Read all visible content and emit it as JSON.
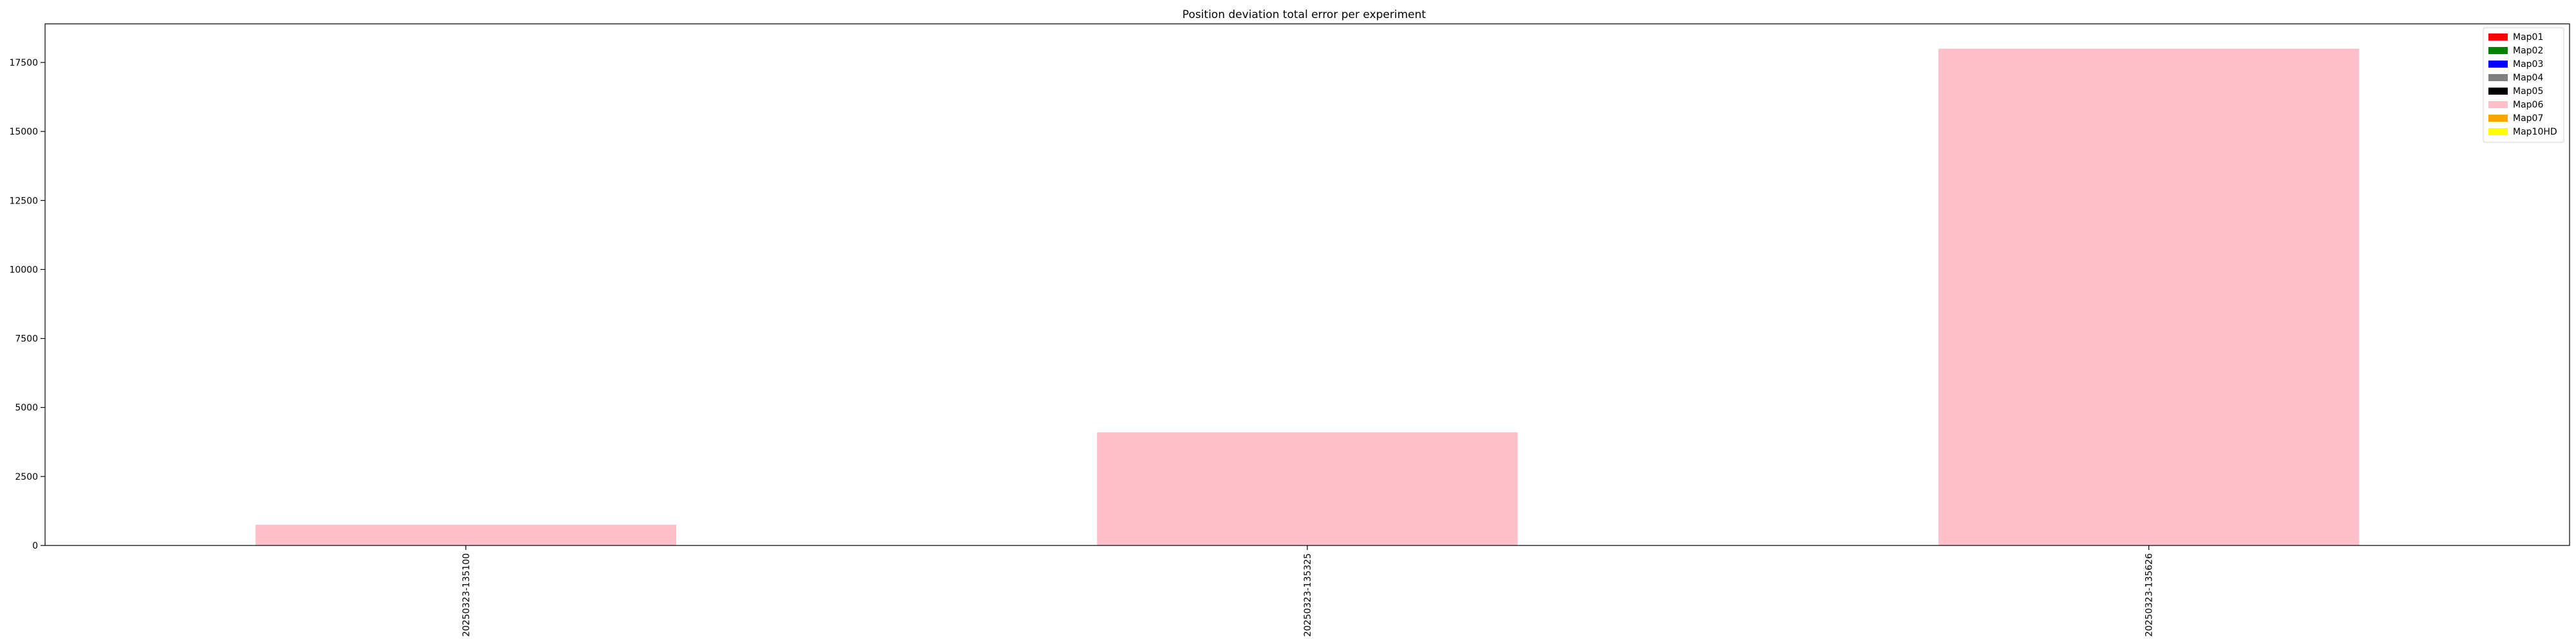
{
  "chart_data": {
    "type": "bar",
    "title": "Position deviation total error per experiment",
    "xlabel": "",
    "ylabel": "",
    "categories": [
      "20250323-135100",
      "20250323-135325",
      "20250323-135626"
    ],
    "series": [
      {
        "name": "Map01",
        "color": "#ff0000",
        "values": [
          0,
          0,
          0
        ]
      },
      {
        "name": "Map02",
        "color": "#008000",
        "values": [
          0,
          0,
          0
        ]
      },
      {
        "name": "Map03",
        "color": "#0000ff",
        "values": [
          0,
          0,
          0
        ]
      },
      {
        "name": "Map04",
        "color": "#808080",
        "values": [
          0,
          0,
          0
        ]
      },
      {
        "name": "Map05",
        "color": "#000000",
        "values": [
          0,
          0,
          0
        ]
      },
      {
        "name": "Map06",
        "color": "#ffc0cb",
        "values": [
          750,
          4100,
          18000
        ]
      },
      {
        "name": "Map07",
        "color": "#ffa500",
        "values": [
          0,
          0,
          0
        ]
      },
      {
        "name": "Map10HD",
        "color": "#ffff00",
        "values": [
          0,
          0,
          0
        ]
      }
    ],
    "ylim": [
      0,
      18900
    ],
    "yticks": [
      0,
      2500,
      5000,
      7500,
      10000,
      12500,
      15000,
      17500
    ],
    "grid": false,
    "legend": "top-right"
  }
}
